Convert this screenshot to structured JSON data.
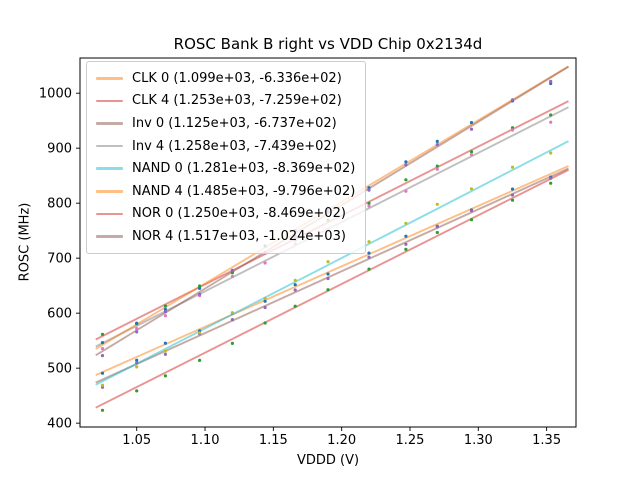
{
  "chart_data": {
    "type": "scatter",
    "title": "ROSC Bank B right vs VDD Chip 0x2134d",
    "xlabel": "VDDD (V)",
    "ylabel": "ROSC (MHz)",
    "grid": false,
    "legend_position": "upper left",
    "xlim": [
      1.0085,
      1.3715
    ],
    "ylim": [
      393,
      1064
    ],
    "x_ticks": [
      1.05,
      1.1,
      1.15,
      1.2,
      1.25,
      1.3,
      1.35
    ],
    "x_tick_labels": [
      "1.05",
      "1.10",
      "1.15",
      "1.20",
      "1.25",
      "1.30",
      "1.35"
    ],
    "y_ticks": [
      400,
      500,
      600,
      700,
      800,
      900,
      1000
    ],
    "y_tick_labels": [
      "400",
      "500",
      "600",
      "700",
      "800",
      "900",
      "1000"
    ],
    "fit_line_x_range": [
      1.02,
      1.366
    ],
    "x": [
      1.025,
      1.05,
      1.071,
      1.096,
      1.12,
      1.144,
      1.166,
      1.19,
      1.22,
      1.247,
      1.27,
      1.295,
      1.325,
      1.353
    ],
    "series": [
      {
        "name": "CLK 0",
        "legend_label": "CLK 0 (1.099e+03, -6.336e+02)",
        "fit_slope": 1099.0,
        "fit_intercept": -633.6,
        "line_color": "rgba(255,127,14,0.5)",
        "marker_color": "#1f77b4",
        "y": [
          490.9,
          514.4,
          545.4,
          567.9,
          600.3,
          621.7,
          651.8,
          671.2,
          709.2,
          739.9,
          758.1,
          787.6,
          825.6,
          847.4
        ]
      },
      {
        "name": "CLK 4",
        "legend_label": "CLK 4 (1.253e+03, -7.259e+02)",
        "fit_slope": 1253.0,
        "fit_intercept": -725.9,
        "line_color": "rgba(214,39,40,0.5)",
        "marker_color": "#2ca02c",
        "y": [
          561.4,
          580.8,
          613.1,
          649.4,
          673.5,
          710.5,
          733.1,
          769.2,
          799.8,
          842.6,
          867.4,
          893.7,
          937.3,
          960.4
        ]
      },
      {
        "name": "Inv 0",
        "legend_label": "Inv 0 (1.125e+03, -6.737e+02)",
        "fit_slope": 1125.0,
        "fit_intercept": -673.7,
        "line_color": "rgba(140,86,75,0.5)",
        "marker_color": "#9467bd",
        "y": [
          465.4,
          509.6,
          525.2,
          562.3,
          588.3,
          610.3,
          642.1,
          663.1,
          701.8,
          725.2,
          757.1,
          786.2,
          814.9,
          845.4
        ]
      },
      {
        "name": "Inv 4",
        "legend_label": "Inv 4 (1.258e+03, -7.439e+02)",
        "fit_slope": 1258.0,
        "fit_intercept": -743.9,
        "line_color": "rgba(127,127,127,0.5)",
        "marker_color": "#e377c2",
        "y": [
          535.6,
          572.0,
          595.4,
          631.9,
          667.1,
          691.3,
          725.9,
          751.1,
          794.9,
          821.8,
          861.8,
          888.2,
          933.0,
          947.2
        ]
      },
      {
        "name": "NAND 0",
        "legend_label": "NAND 0 (1.281e+03, -8.369e+02)",
        "fit_slope": 1281.0,
        "fit_intercept": -836.9,
        "line_color": "rgba(23,190,207,0.5)",
        "marker_color": "#bcbd22",
        "y": [
          469.1,
          502.2,
          531.1,
          564.1,
          600.8,
          626.6,
          659.8,
          693.5,
          729.9,
          763.5,
          798.0,
          826.0,
          865.4,
          891.3
        ]
      },
      {
        "name": "NAND 4",
        "legend_label": "NAND 4 (1.485e+03, -9.796e+02)",
        "fit_slope": 1485.0,
        "fit_intercept": -979.6,
        "line_color": "rgba(255,127,14,0.5)",
        "marker_color": "#1f77b4",
        "y": [
          546.5,
          581.7,
          606.8,
          645.0,
          677.6,
          722.2,
          749.9,
          790.6,
          828.1,
          875.2,
          912.4,
          946.5,
          986.0,
          1017.6
        ]
      },
      {
        "name": "NOR 0",
        "legend_label": "NOR 0 (1.250e+03, -8.469e+02)",
        "fit_slope": 1250.0,
        "fit_intercept": -846.9,
        "line_color": "rgba(214,39,40,0.5)",
        "marker_color": "#2ca02c",
        "y": [
          423.4,
          458.6,
          485.9,
          514.1,
          545.1,
          582.1,
          612.6,
          642.6,
          680.1,
          715.9,
          746.6,
          769.9,
          805.4,
          836.4
        ]
      },
      {
        "name": "NOR 4",
        "legend_label": "NOR 4 (1.517e+03, -1.024e+03)",
        "fit_slope": 1517.0,
        "fit_intercept": -1024.0,
        "line_color": "rgba(140,86,75,0.5)",
        "marker_color": "#9467bd",
        "y": [
          522.9,
          565.9,
          602.7,
          634.6,
          678.0,
          709.5,
          739.8,
          784.2,
          823.7,
          869.7,
          906.6,
          934.5,
          988.0,
          1021.5
        ]
      }
    ]
  }
}
